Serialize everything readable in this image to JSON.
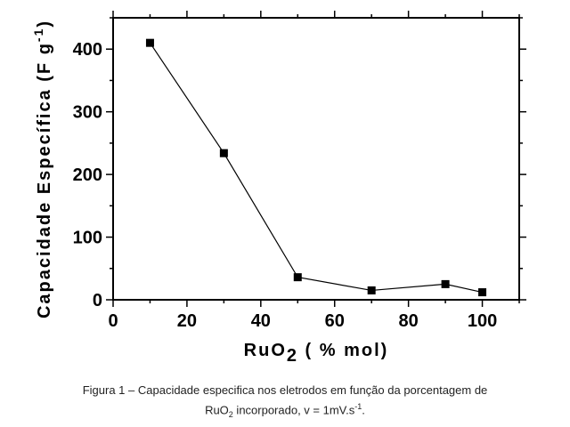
{
  "chart_data": {
    "type": "line",
    "x": [
      10,
      30,
      50,
      70,
      90,
      100
    ],
    "y": [
      410,
      234,
      36,
      15,
      25,
      12
    ],
    "xlabel": {
      "main": "RuO",
      "sub": "2",
      "rest": " ( % mol)"
    },
    "ylabel": {
      "main": "Capacidade Específica (F g",
      "sup": "-1",
      "rest": ")"
    },
    "xlim": [
      0,
      110
    ],
    "ylim": [
      0,
      450
    ],
    "xticks": [
      0,
      20,
      40,
      60,
      80,
      100
    ],
    "yticks": [
      0,
      100,
      200,
      300,
      400
    ],
    "grid": false,
    "marker": "square"
  },
  "caption": {
    "line1": "Figura 1 – Capacidade especifica nos eletrodos em função da porcentagem de",
    "line2_a": "RuO",
    "line2_sub": "2",
    "line2_b": " incorporado, v = 1mV.s",
    "line2_sup": "-1",
    "line2_c": "."
  }
}
